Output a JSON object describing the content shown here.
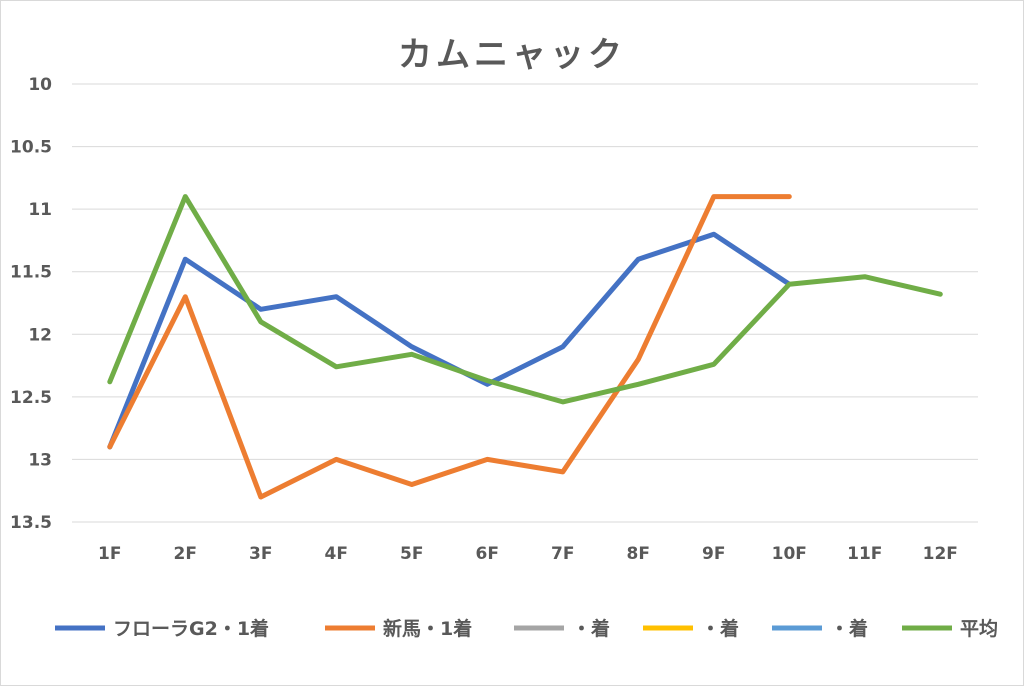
{
  "chart_data": {
    "type": "line",
    "title": "カムニャック",
    "xlabel": "",
    "ylabel": "",
    "categories": [
      "1F",
      "2F",
      "3F",
      "4F",
      "5F",
      "6F",
      "7F",
      "8F",
      "9F",
      "10F",
      "11F",
      "12F"
    ],
    "ylim": [
      10,
      13.5
    ],
    "y_reversed": true,
    "y_ticks": [
      "10",
      "10.5",
      "11",
      "11.5",
      "12",
      "12.5",
      "13",
      "13.5"
    ],
    "grid": true,
    "legend_position": "bottom",
    "series": [
      {
        "name": "フローラG2・1着",
        "color": "#4472c4",
        "values": [
          12.9,
          11.4,
          11.8,
          11.7,
          12.1,
          12.4,
          12.1,
          11.4,
          11.2,
          11.6,
          null,
          null
        ]
      },
      {
        "name": "新馬・1着",
        "color": "#ed7d31",
        "values": [
          12.9,
          11.7,
          13.3,
          13.0,
          13.2,
          13.0,
          13.1,
          12.2,
          10.9,
          10.9,
          null,
          null
        ]
      },
      {
        "name": "・着",
        "color": "#a5a5a5",
        "values": [
          null,
          null,
          null,
          null,
          null,
          null,
          null,
          null,
          null,
          null,
          null,
          null
        ]
      },
      {
        "name": "・着",
        "color": "#ffc000",
        "values": [
          null,
          null,
          null,
          null,
          null,
          null,
          null,
          null,
          null,
          null,
          null,
          null
        ]
      },
      {
        "name": "・着",
        "color": "#5b9bd5",
        "values": [
          null,
          null,
          null,
          null,
          null,
          null,
          null,
          null,
          null,
          null,
          null,
          null
        ]
      },
      {
        "name": "平均",
        "color": "#70ad47",
        "values": [
          12.38,
          10.9,
          11.9,
          12.26,
          12.16,
          12.37,
          12.54,
          12.4,
          12.24,
          11.6,
          11.54,
          11.68
        ]
      }
    ]
  }
}
